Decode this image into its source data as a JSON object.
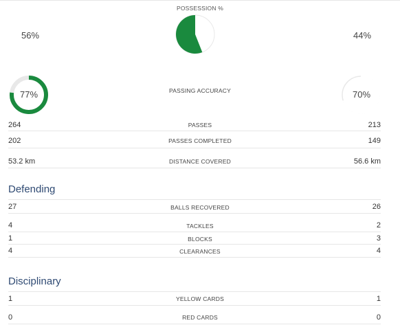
{
  "possession": {
    "title": "POSSESSION %",
    "home_pct": "56%",
    "away_pct": "44%",
    "home_value": 0.56,
    "colors": {
      "home": "#1a8a3e",
      "away": "#ffffff",
      "track": "#e8e8e8"
    }
  },
  "passing_accuracy": {
    "label": "PASSING ACCURACY",
    "home_pct": "77%",
    "away_pct": "70%",
    "home_value": 0.77,
    "away_value": 0.7,
    "colors": {
      "home": "#1a8a3e",
      "away": "#ffffff",
      "track": "#e8e8e8"
    }
  },
  "stats_top": [
    {
      "home": "264",
      "label": "PASSES",
      "away": "213"
    },
    {
      "home": "202",
      "label": "PASSES COMPLETED",
      "away": "149"
    },
    {
      "home": "53.2 km",
      "label": "DISTANCE COVERED",
      "away": "56.6 km"
    }
  ],
  "defending": {
    "heading": "Defending",
    "rows": [
      {
        "home": "27",
        "label": "BALLS RECOVERED",
        "away": "26"
      },
      {
        "home": "4",
        "label": "TACKLES",
        "away": "2"
      },
      {
        "home": "1",
        "label": "BLOCKS",
        "away": "3"
      },
      {
        "home": "4",
        "label": "CLEARANCES",
        "away": "4"
      }
    ]
  },
  "disciplinary": {
    "heading": "Disciplinary",
    "rows": [
      {
        "home": "1",
        "label": "YELLOW CARDS",
        "away": "1"
      },
      {
        "home": "0",
        "label": "RED CARDS",
        "away": "0"
      }
    ]
  }
}
